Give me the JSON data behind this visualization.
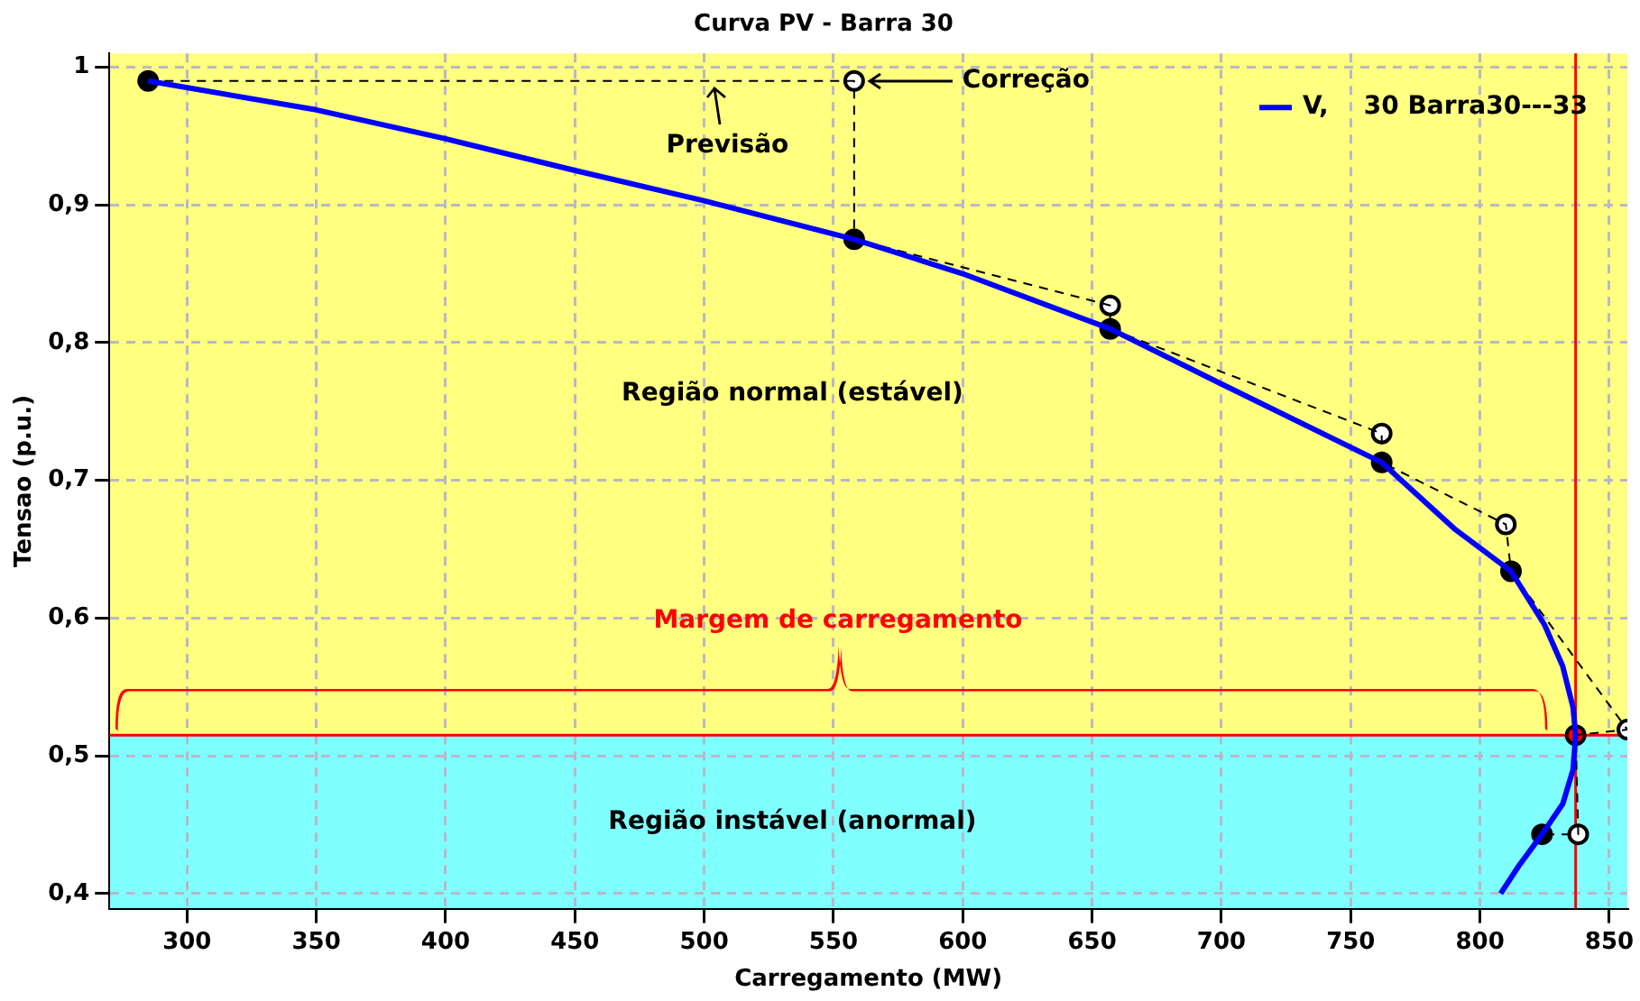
{
  "chart_data": {
    "type": "line",
    "title": "Curva PV - Barra 30",
    "xlabel": "Carregamento (MW)",
    "ylabel": "Tensao (p.u.)",
    "xlim": [
      270,
      857
    ],
    "xticks": [
      300,
      350,
      400,
      450,
      500,
      550,
      600,
      650,
      700,
      750,
      800,
      850
    ],
    "ylim": [
      0.389,
      1.01
    ],
    "yticks": [
      {
        "value": 0.4,
        "label": "0,4"
      },
      {
        "value": 0.5,
        "label": "0,5"
      },
      {
        "value": 0.6,
        "label": "0,6"
      },
      {
        "value": 0.7,
        "label": "0,7"
      },
      {
        "value": 0.8,
        "label": "0,8"
      },
      {
        "value": 0.9,
        "label": "0,9"
      },
      {
        "value": 1,
        "label": "1"
      }
    ],
    "grid": true,
    "legend": "top right",
    "series": [
      {
        "type": "line",
        "name": "V,    30 Barra30---33",
        "color": "#0000ff",
        "line_style": "solid",
        "marker": "none",
        "x": [
          285,
          350,
          400,
          450,
          500,
          558,
          600,
          657,
          700,
          762,
          790,
          812,
          825,
          832,
          836,
          837,
          836,
          832,
          824,
          815,
          808
        ],
        "values": [
          0.99,
          0.969,
          0.948,
          0.925,
          0.903,
          0.875,
          0.85,
          0.81,
          0.77,
          0.713,
          0.665,
          0.634,
          0.595,
          0.565,
          0.535,
          0.515,
          0.49,
          0.465,
          0.443,
          0.42,
          0.4
        ]
      },
      {
        "type": "line",
        "color": "#000000",
        "line_style": "dashed",
        "marker": "none",
        "x": [
          285,
          558,
          558,
          657,
          657,
          762,
          762,
          810,
          812,
          857,
          837,
          838,
          824
        ],
        "values": [
          0.99,
          0.99,
          0.875,
          0.827,
          0.81,
          0.734,
          0.713,
          0.668,
          0.634,
          0.519,
          0.515,
          0.443,
          0.443
        ]
      },
      {
        "type": "scatter",
        "color": "#000000",
        "marker": "circle",
        "x": [
          285,
          558,
          657,
          762,
          812,
          824
        ],
        "values": [
          0.99,
          0.875,
          0.81,
          0.713,
          0.634,
          0.443
        ]
      },
      {
        "type": "scatter",
        "color": "#ffffff",
        "marker": "circle",
        "x": [
          558,
          657,
          762,
          810,
          857,
          838
        ],
        "values": [
          0.99,
          0.827,
          0.734,
          0.668,
          0.519,
          0.443
        ]
      },
      {
        "type": "scatter",
        "color": "#ff0000",
        "marker": "circle",
        "x": [
          837
        ],
        "values": [
          0.515
        ]
      }
    ],
    "bands": [
      {
        "axis": "y",
        "from": 0.389,
        "to": 0.515,
        "label": "Região instável (anormal)",
        "color": "#80ffff"
      },
      {
        "axis": "y",
        "from": 0.515,
        "to": 1.01,
        "label": "Região normal (estável)",
        "color": "#ffff80"
      }
    ],
    "ref_lines": [
      {
        "axis": "y",
        "value": 0.515,
        "color": "#ff0000"
      },
      {
        "axis": "x",
        "value": 837,
        "color": "#ff0000"
      }
    ],
    "annotations": [
      "Previsão",
      "Correção",
      "Margem de carregamento"
    ]
  }
}
